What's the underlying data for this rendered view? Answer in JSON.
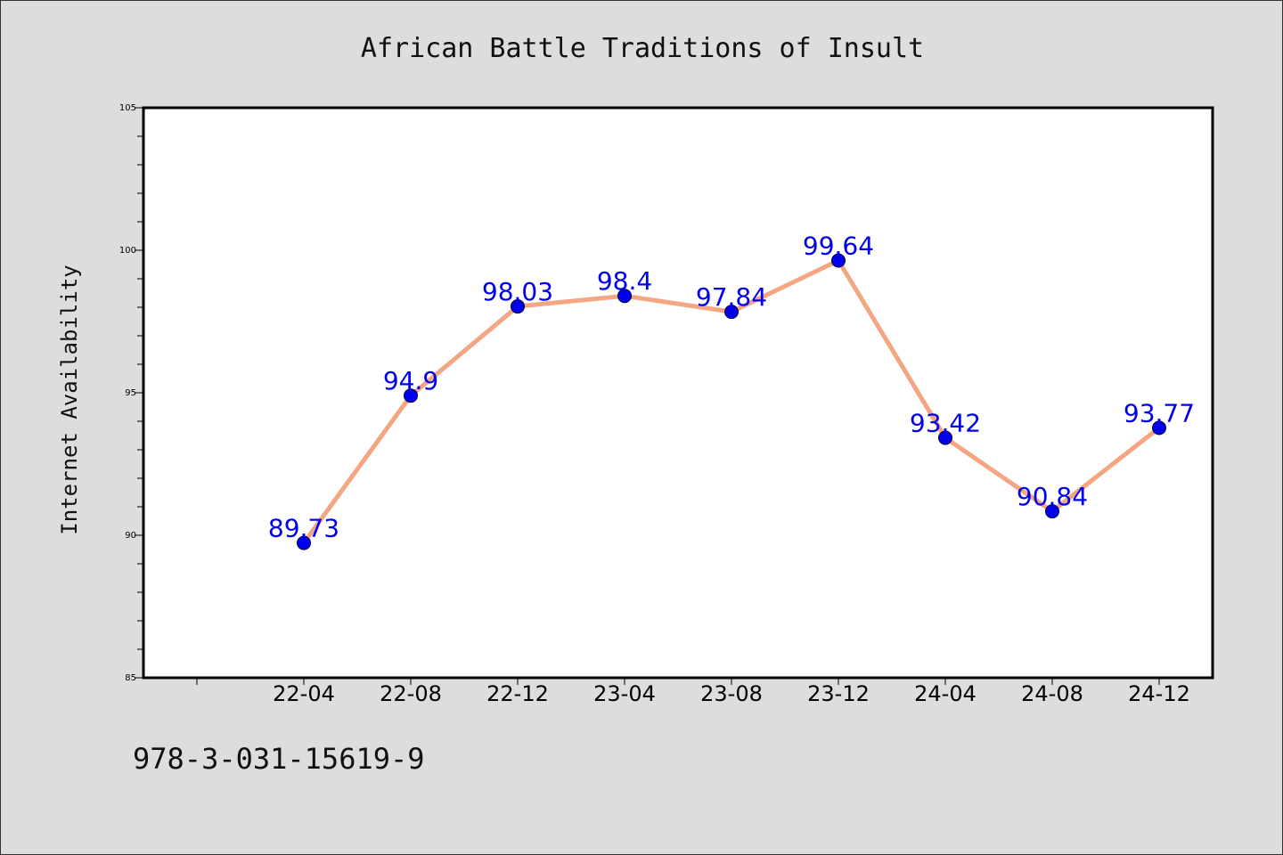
{
  "chart_data": {
    "type": "line",
    "title": "African Battle Traditions of Insult",
    "xlabel": "",
    "ylabel": "Internet Availability",
    "categories": [
      "22-04",
      "22-08",
      "22-12",
      "23-04",
      "23-08",
      "23-12",
      "24-04",
      "24-08",
      "24-12"
    ],
    "series": [
      {
        "values": [
          89.73,
          94.9,
          98.03,
          98.4,
          97.84,
          99.64,
          93.42,
          90.84,
          93.77
        ],
        "labels": [
          "89.73",
          "94.9",
          "98.03",
          "98.4",
          "97.84",
          "99.64",
          "93.42",
          "90.84",
          "93.77"
        ],
        "line_color": "#f4a582",
        "marker_color": "#0000ee",
        "label_color": "#0000ee"
      }
    ],
    "ylim": [
      85,
      105
    ],
    "y_ticks": [
      "85",
      "90",
      "95",
      "100",
      "105"
    ],
    "y_tick_values": [
      85,
      90,
      95,
      100,
      105
    ],
    "grid": false,
    "legend": "none"
  },
  "footer": {
    "code": "978-3-031-15619-9"
  },
  "colors": {
    "background": "#dddddd",
    "plot_background": "#ffffff",
    "axis": "#000000"
  }
}
